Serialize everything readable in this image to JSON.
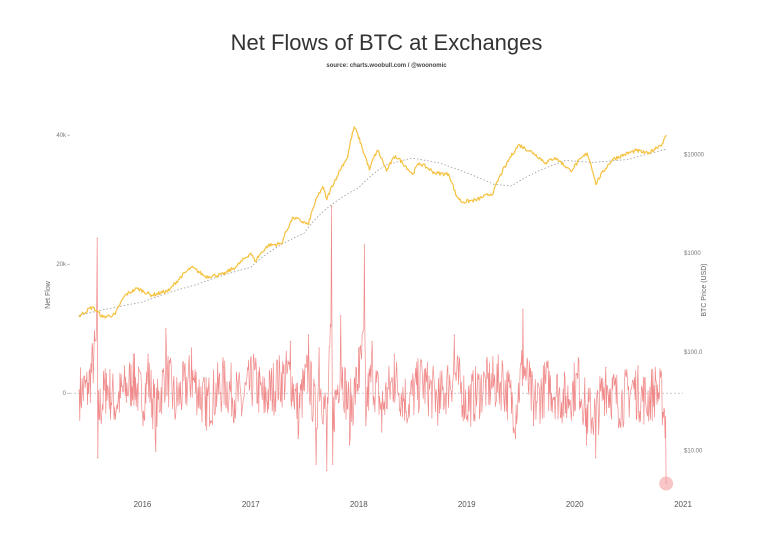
{
  "chart_data": {
    "type": "line",
    "title": "Net Flows of BTC at Exchanges",
    "subtitle": "source: charts.woobull.com / @woonomic",
    "ylabel_left": "Net Flow",
    "ylabel_right": "BTC Price (USD)",
    "x_ticks": [
      "2016",
      "2017",
      "2018",
      "2019",
      "2020",
      "2021"
    ],
    "y_left_ticks": [
      "40k",
      "20k",
      "0"
    ],
    "y_left_ticks_values": [
      40000,
      20000,
      0
    ],
    "y_right_ticks": [
      "$10000",
      "$1000",
      "$100.0",
      "$10.00"
    ],
    "y_right_ticks_values": [
      10000,
      1000,
      100,
      10
    ],
    "y_right_scale": "log",
    "y_left_range": [
      -15000,
      47000
    ],
    "y_right_range": [
      4,
      45000
    ],
    "x_range": [
      "2015-05",
      "2021-01"
    ],
    "grid": false,
    "colors": {
      "price": "#f5c242",
      "price_ma": "#9a9a9a",
      "netflow": "#f08a8a",
      "highlight": "#f4a0a0",
      "zero_line": "#bbbbbb"
    },
    "series": [
      {
        "name": "BTC Price (USD)",
        "axis": "right",
        "points": [
          [
            "2015-06-01",
            230
          ],
          [
            "2015-07-15",
            285
          ],
          [
            "2015-08-20",
            225
          ],
          [
            "2015-10-01",
            240
          ],
          [
            "2015-11-05",
            380
          ],
          [
            "2015-12-15",
            440
          ],
          [
            "2016-02-01",
            375
          ],
          [
            "2016-04-01",
            420
          ],
          [
            "2016-06-15",
            720
          ],
          [
            "2016-08-01",
            580
          ],
          [
            "2016-10-01",
            610
          ],
          [
            "2016-11-15",
            740
          ],
          [
            "2017-01-01",
            1000
          ],
          [
            "2017-01-15",
            830
          ],
          [
            "2017-03-01",
            1200
          ],
          [
            "2017-04-15",
            1250
          ],
          [
            "2017-05-25",
            2300
          ],
          [
            "2017-07-15",
            1950
          ],
          [
            "2017-09-01",
            4700
          ],
          [
            "2017-09-15",
            3500
          ],
          [
            "2017-10-20",
            6000
          ],
          [
            "2017-11-25",
            9500
          ],
          [
            "2017-12-17",
            19000
          ],
          [
            "2018-01-15",
            11000
          ],
          [
            "2018-02-06",
            7000
          ],
          [
            "2018-03-05",
            11000
          ],
          [
            "2018-04-05",
            6800
          ],
          [
            "2018-05-05",
            9700
          ],
          [
            "2018-07-01",
            6300
          ],
          [
            "2018-07-25",
            8200
          ],
          [
            "2018-09-15",
            6500
          ],
          [
            "2018-11-01",
            6300
          ],
          [
            "2018-11-25",
            3900
          ],
          [
            "2018-12-15",
            3300
          ],
          [
            "2019-02-01",
            3450
          ],
          [
            "2019-04-01",
            4100
          ],
          [
            "2019-05-15",
            7900
          ],
          [
            "2019-06-26",
            12500
          ],
          [
            "2019-08-15",
            10300
          ],
          [
            "2019-09-25",
            8200
          ],
          [
            "2019-10-26",
            9300
          ],
          [
            "2019-12-18",
            6800
          ],
          [
            "2020-02-12",
            10300
          ],
          [
            "2020-03-12",
            5000
          ],
          [
            "2020-05-10",
            9000
          ],
          [
            "2020-07-27",
            11000
          ],
          [
            "2020-09-05",
            10200
          ],
          [
            "2020-10-25",
            13000
          ],
          [
            "2020-11-05",
            15500
          ]
        ]
      },
      {
        "name": "BTC Price Moving Average",
        "axis": "right",
        "points": [
          [
            "2015-06-01",
            235
          ],
          [
            "2016-01-01",
            320
          ],
          [
            "2016-07-01",
            480
          ],
          [
            "2017-01-01",
            720
          ],
          [
            "2017-07-01",
            1600
          ],
          [
            "2018-01-01",
            4600
          ],
          [
            "2018-04-01",
            7800
          ],
          [
            "2018-07-01",
            9200
          ],
          [
            "2018-10-01",
            8200
          ],
          [
            "2019-01-01",
            6500
          ],
          [
            "2019-04-01",
            5000
          ],
          [
            "2019-06-01",
            4800
          ],
          [
            "2019-09-01",
            6800
          ],
          [
            "2019-12-01",
            8700
          ],
          [
            "2020-03-01",
            8300
          ],
          [
            "2020-07-01",
            8900
          ],
          [
            "2020-11-05",
            11300
          ]
        ]
      },
      {
        "name": "Net Flow",
        "axis": "left",
        "points": [
          [
            "2015-06-01",
            500
          ],
          [
            "2015-07-01",
            1500
          ],
          [
            "2015-08-01",
            24000
          ],
          [
            "2015-08-03",
            -10000
          ],
          [
            "2015-09-01",
            3000
          ],
          [
            "2015-10-01",
            -4000
          ],
          [
            "2015-12-01",
            6000
          ],
          [
            "2016-01-01",
            -3000
          ],
          [
            "2016-01-20",
            6000
          ],
          [
            "2016-02-15",
            -9000
          ],
          [
            "2016-03-20",
            10000
          ],
          [
            "2016-04-20",
            -4000
          ],
          [
            "2016-06-15",
            7000
          ],
          [
            "2016-08-01",
            -5000
          ],
          [
            "2016-10-01",
            4000
          ],
          [
            "2016-12-01",
            -3500
          ],
          [
            "2017-01-10",
            6000
          ],
          [
            "2017-02-15",
            -3000
          ],
          [
            "2017-04-01",
            5000
          ],
          [
            "2017-05-15",
            8000
          ],
          [
            "2017-06-10",
            -7000
          ],
          [
            "2017-07-15",
            9000
          ],
          [
            "2017-08-10",
            -11000
          ],
          [
            "2017-08-20",
            7000
          ],
          [
            "2017-09-15",
            -12000
          ],
          [
            "2017-10-01",
            29000
          ],
          [
            "2017-10-05",
            -11000
          ],
          [
            "2017-11-01",
            12000
          ],
          [
            "2017-12-01",
            -8000
          ],
          [
            "2018-01-01",
            7000
          ],
          [
            "2018-01-20",
            23000
          ],
          [
            "2018-01-25",
            -5000
          ],
          [
            "2018-02-15",
            8000
          ],
          [
            "2018-03-20",
            -6000
          ],
          [
            "2018-05-01",
            6000
          ],
          [
            "2018-06-15",
            -4000
          ],
          [
            "2018-08-01",
            5000
          ],
          [
            "2018-10-01",
            -3000
          ],
          [
            "2018-11-20",
            9000
          ],
          [
            "2019-01-01",
            -4000
          ],
          [
            "2019-03-01",
            3000
          ],
          [
            "2019-05-01",
            5000
          ],
          [
            "2019-06-15",
            -7000
          ],
          [
            "2019-07-10",
            13000
          ],
          [
            "2019-08-15",
            -5000
          ],
          [
            "2019-10-01",
            4000
          ],
          [
            "2019-12-01",
            -3000
          ],
          [
            "2020-01-15",
            5000
          ],
          [
            "2020-02-10",
            -8000
          ],
          [
            "2020-03-12",
            -10000
          ],
          [
            "2020-04-15",
            4000
          ],
          [
            "2020-06-01",
            -4000
          ],
          [
            "2020-07-15",
            2000
          ],
          [
            "2020-09-01",
            -3000
          ],
          [
            "2020-10-01",
            2000
          ],
          [
            "2020-10-25",
            -3000
          ],
          [
            "2020-11-05",
            -14000
          ]
        ]
      }
    ],
    "highlight_point": {
      "series": "Net Flow",
      "x": "2020-11-05",
      "y": -14000
    }
  }
}
